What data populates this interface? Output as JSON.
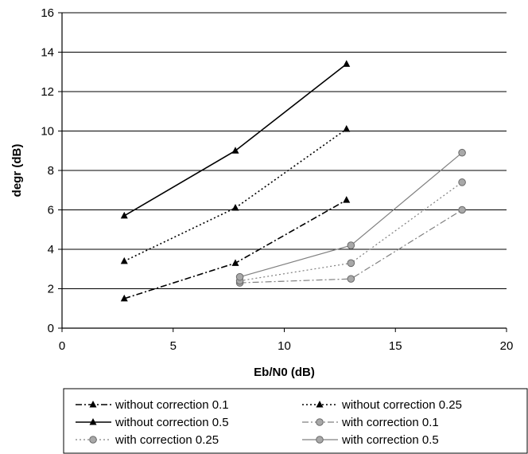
{
  "chart_data": {
    "type": "line",
    "title": "",
    "xlabel": "Eb/N0 (dB)",
    "ylabel": "degr (dB)",
    "xlim": [
      0,
      20
    ],
    "ylim": [
      0,
      16
    ],
    "xticks": [
      "0",
      "5",
      "10",
      "15",
      "20"
    ],
    "yticks": [
      "0",
      "2",
      "4",
      "6",
      "8",
      "10",
      "12",
      "14",
      "16"
    ],
    "grid": "horizontal",
    "legend_position": "bottom",
    "series": [
      {
        "name": "without correction 0.1",
        "color": "#000000",
        "marker": "triangle",
        "line": "dash-dot",
        "x": [
          2.8,
          7.8,
          12.8
        ],
        "y": [
          1.5,
          3.3,
          6.5
        ]
      },
      {
        "name": "without correction 0.25",
        "color": "#000000",
        "marker": "triangle",
        "line": "dotted",
        "x": [
          2.8,
          7.8,
          12.8
        ],
        "y": [
          3.4,
          6.1,
          10.1
        ]
      },
      {
        "name": "without correction 0.5",
        "color": "#000000",
        "marker": "triangle",
        "line": "solid",
        "x": [
          2.8,
          7.8,
          12.8
        ],
        "y": [
          5.7,
          9.0,
          13.4
        ]
      },
      {
        "name": "with correction 0.1",
        "color": "#808080",
        "marker": "circle",
        "line": "dash-dot",
        "x": [
          8.0,
          13.0,
          18.0
        ],
        "y": [
          2.3,
          2.5,
          6.0
        ]
      },
      {
        "name": "with correction 0.25",
        "color": "#808080",
        "marker": "circle",
        "line": "dotted",
        "x": [
          8.0,
          13.0,
          18.0
        ],
        "y": [
          2.4,
          3.3,
          7.4
        ]
      },
      {
        "name": "with correction 0.5",
        "color": "#808080",
        "marker": "circle",
        "line": "solid",
        "x": [
          8.0,
          13.0,
          18.0
        ],
        "y": [
          2.6,
          4.2,
          8.9
        ]
      }
    ]
  }
}
